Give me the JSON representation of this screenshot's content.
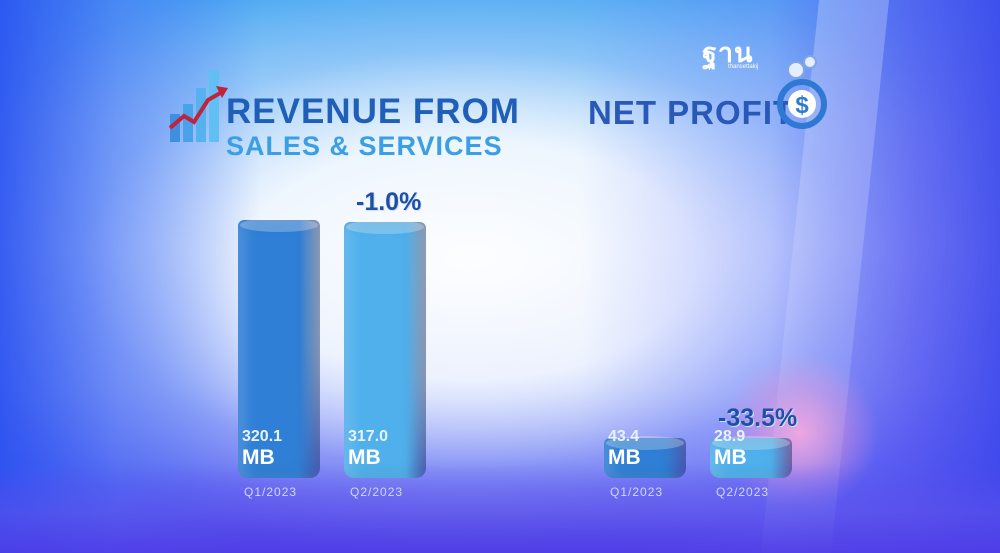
{
  "logo": {
    "text": "ฐาน",
    "sub": "thansettakij"
  },
  "chart_data": [
    {
      "type": "bar",
      "title": "REVENUE FROM",
      "subtitle": "SALES & SERVICES",
      "categories": [
        "Q1/2023",
        "Q2/2023"
      ],
      "values": [
        320.1,
        317.0
      ],
      "value_labels": [
        "320.1",
        "317.0"
      ],
      "unit": "MB",
      "change_label": "-1.0%",
      "colors": [
        "#2f7fd6",
        "#4fb0ec"
      ]
    },
    {
      "type": "bar",
      "title": "NET PROFIT",
      "categories": [
        "Q1/2023",
        "Q2/2023"
      ],
      "values": [
        43.4,
        28.9
      ],
      "value_labels": [
        "43.4",
        "28.9"
      ],
      "unit": "MB",
      "change_label": "-33.5%",
      "colors": [
        "#2f7fd6",
        "#4fb0ec"
      ]
    }
  ]
}
